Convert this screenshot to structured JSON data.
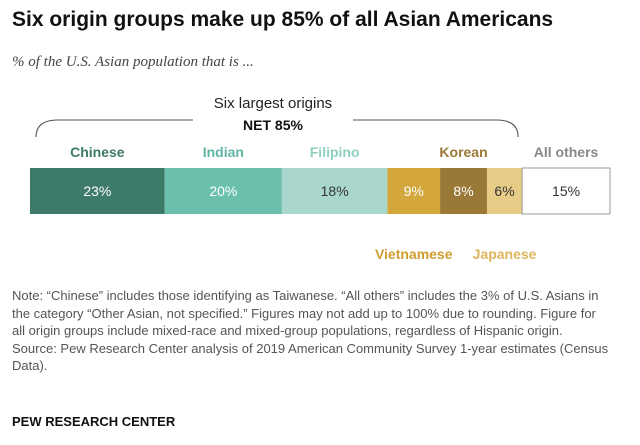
{
  "title": "Six origin groups make up 85% of all Asian Americans",
  "subtitle": "% of the U.S. Asian population that is ...",
  "bracket": {
    "label": "Six largest origins",
    "net_label": "NET 85%"
  },
  "note": "Note: “Chinese” includes those identifying as Taiwanese. “All others” includes the 3% of U.S. Asians in the category “Other Asian, not specified.” Figures may not add up to 100% due to rounding. Figure for all origin groups include mixed-race and mixed-group populations, regardless of Hispanic origin.",
  "source": "Source: Pew Research Center analysis of 2019 American Community Survey 1-year estimates (Census Data).",
  "footer": "PEW RESEARCH CENTER",
  "chart_data": {
    "type": "bar",
    "stacked": true,
    "orientation": "horizontal",
    "title": "Six origin groups make up 85% of all Asian Americans",
    "subtitle": "% of the U.S. Asian population that is ...",
    "categories": [
      "Chinese",
      "Indian",
      "Filipino",
      "Vietnamese",
      "Korean",
      "Japanese",
      "All others"
    ],
    "values": [
      23,
      20,
      18,
      9,
      8,
      6,
      15
    ],
    "value_labels": [
      "23%",
      "20%",
      "18%",
      "9%",
      "8%",
      "6%",
      "15%"
    ],
    "label_position": [
      "top",
      "top",
      "top",
      "bottom",
      "top",
      "bottom",
      "top"
    ],
    "colors": [
      "#3e7a69",
      "#6bbfad",
      "#a9d7ce",
      "#d4a73c",
      "#9a7836",
      "#e6cc86",
      "#ffffff"
    ],
    "label_colors": [
      "#3e7a69",
      "#5fb5a3",
      "#8ecfc2",
      "#cf9e2f",
      "#9a7836",
      "#ddb75d",
      "#888888"
    ],
    "value_text_colors": [
      "#ffffff",
      "#ffffff",
      "#333333",
      "#ffffff",
      "#ffffff",
      "#333333",
      "#333333"
    ],
    "annotation": {
      "label": "Six largest origins",
      "net": "NET 85%"
    }
  }
}
